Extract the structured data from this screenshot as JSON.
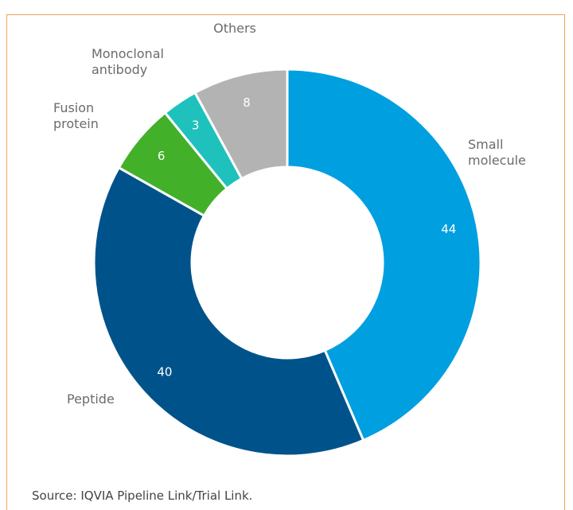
{
  "chart_data": {
    "type": "donut",
    "categories": [
      "Small molecule",
      "Peptide",
      "Fusion protein",
      "Monoclonal antibody",
      "Others"
    ],
    "values": [
      44,
      40,
      6,
      3,
      8
    ],
    "colors": [
      "#009fe0",
      "#00538a",
      "#43b02a",
      "#1fc1bd",
      "#b3b3b3"
    ],
    "source": "Source: IQVIA Pipeline Link/Trial Link."
  }
}
